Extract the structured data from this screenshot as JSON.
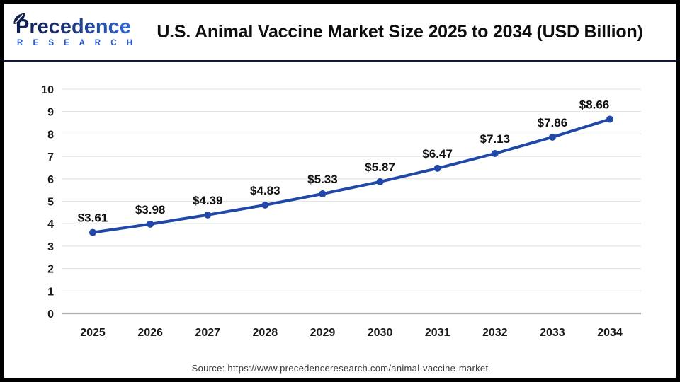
{
  "header": {
    "logo": {
      "word": "Precedence",
      "subword": "R E S E A R C H"
    },
    "title": "U.S. Animal Vaccine Market Size 2025 to 2034 (USD Billion)"
  },
  "chart_data": {
    "type": "line",
    "title": "U.S. Animal Vaccine Market Size 2025 to 2034 (USD Billion)",
    "categories": [
      "2025",
      "2026",
      "2027",
      "2028",
      "2029",
      "2030",
      "2031",
      "2032",
      "2033",
      "2034"
    ],
    "values": [
      3.61,
      3.98,
      4.39,
      4.83,
      5.33,
      5.87,
      6.47,
      7.13,
      7.86,
      8.66
    ],
    "data_labels": [
      "$3.61",
      "$3.98",
      "$4.39",
      "$4.83",
      "$5.33",
      "$5.87",
      "$6.47",
      "$7.13",
      "$7.86",
      "$8.66"
    ],
    "xlabel": "",
    "ylabel": "",
    "ylim": [
      0,
      10
    ],
    "ytick_step": 1,
    "grid": true,
    "legend": "none",
    "line_color": "#2148a8",
    "marker_color": "#2148a8",
    "gridline_color": "#e5e5e5",
    "zeroline_color": "#ababab",
    "tick_label_color": "#1a1a1a",
    "data_label_color": "#111111"
  },
  "footer": {
    "source": "Source: https://www.precedenceresearch.com/animal-vaccine-market"
  }
}
